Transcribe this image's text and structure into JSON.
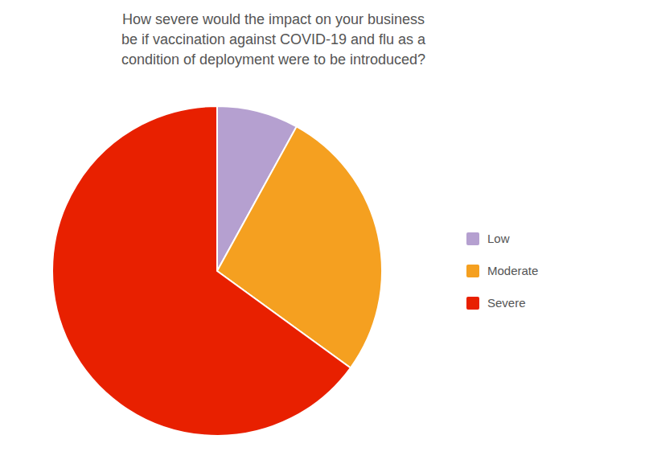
{
  "chart_data": {
    "type": "pie",
    "title": "How severe would the impact on your business\nbe if vaccination against COVID-19 and flu as a\ncondition of deployment were to be introduced?",
    "categories": [
      "Low",
      "Moderate",
      "Severe"
    ],
    "values": [
      8,
      27,
      65
    ],
    "colors": [
      "#b5a0d0",
      "#f5a020",
      "#e82000"
    ],
    "legend": "right"
  }
}
